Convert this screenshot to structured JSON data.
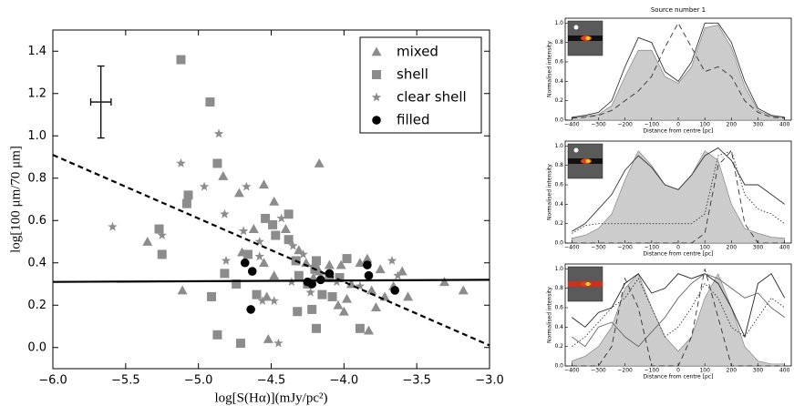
{
  "chart_data": [
    {
      "type": "scatter",
      "xlabel": "log[S(Hα)](mJy/pc²)",
      "ylabel": "log[100 μm/70 μm]",
      "xlim": [
        -6.0,
        -3.0
      ],
      "ylim": [
        -0.1,
        1.5
      ],
      "xticks": [
        {
          "value": -6.0,
          "label": "−6.0"
        },
        {
          "value": -5.5,
          "label": "−5.5"
        },
        {
          "value": -5.0,
          "label": "−5.0"
        },
        {
          "value": -4.5,
          "label": "−4.5"
        },
        {
          "value": -4.0,
          "label": "−4.0"
        },
        {
          "value": -3.5,
          "label": "−3.5"
        },
        {
          "value": -3.0,
          "label": "−3.0"
        }
      ],
      "yticks": [
        {
          "value": 0,
          "label": "0.0"
        },
        0.2,
        0.4,
        0.6,
        0.8,
        {
          "value": 1,
          "label": "1.0"
        },
        1.2,
        1.4
      ],
      "legend": "upper right",
      "series": [
        {
          "name": "mixed",
          "color": "#8c8c8c",
          "marker": "triangle",
          "x": [
            -4.17,
            -5.35,
            -5.11,
            -4.83,
            -4.72,
            -4.55,
            -4.48,
            -4.62,
            -4.4,
            -4.31,
            -4.7,
            -4.55,
            -4.48,
            -4.53,
            -4.52,
            -4.26,
            -4.21,
            -4.17,
            -4.1,
            -4.02,
            -3.95,
            -3.89,
            -3.84,
            -3.81,
            -3.75,
            -3.72,
            -3.66,
            -3.6,
            -3.56,
            -3.78,
            -4.0,
            -3.83,
            -3.31,
            -3.18,
            -3.98,
            -4.04
          ],
          "values": [
            0.87,
            0.5,
            0.27,
            0.81,
            0.73,
            0.77,
            0.69,
            0.56,
            0.56,
            0.46,
            0.45,
            0.4,
            0.34,
            0.24,
            0.04,
            0.4,
            0.33,
            0.36,
            0.39,
            0.39,
            0.3,
            0.4,
            0.42,
            0.27,
            0.37,
            0.24,
            0.29,
            0.36,
            0.24,
            0.19,
            0.17,
            0.08,
            0.31,
            0.27,
            0.23,
            0.2
          ]
        },
        {
          "name": "shell",
          "color": "#8c8c8c",
          "marker": "square",
          "x": [
            -5.12,
            -4.92,
            -4.87,
            -5.07,
            -5.08,
            -5.27,
            -5.25,
            -4.91,
            -4.87,
            -4.71,
            -4.66,
            -4.54,
            -4.49,
            -4.47,
            -4.38,
            -4.38,
            -4.33,
            -4.31,
            -4.25,
            -4.2,
            -4.19,
            -4.15,
            -4.1,
            -4.22,
            -4.32,
            -4.19,
            -4.08,
            -4.03,
            -3.98,
            -4.82,
            -4.6,
            -3.89,
            -4.74
          ],
          "values": [
            1.36,
            1.16,
            0.87,
            0.72,
            0.68,
            0.56,
            0.44,
            0.24,
            0.06,
            0.02,
            0.44,
            0.61,
            0.58,
            0.53,
            0.63,
            0.51,
            0.41,
            0.34,
            0.3,
            0.37,
            0.41,
            0.25,
            0.33,
            0.18,
            0.17,
            0.09,
            0.24,
            0.33,
            0.42,
            0.35,
            0.25,
            0.09,
            0.3
          ]
        },
        {
          "name": "clear shell",
          "color": "#8c8c8c",
          "marker": "star",
          "x": [
            -4.86,
            -5.12,
            -4.96,
            -5.25,
            -5.59,
            -4.67,
            -4.82,
            -4.69,
            -4.58,
            -4.43,
            -4.58,
            -4.35,
            -4.28,
            -4.2,
            -4.56,
            -4.48,
            -4.45,
            -4.81,
            -4.36,
            -4.05,
            -3.89,
            -3.67,
            -3.63,
            -4.23
          ],
          "values": [
            1.01,
            0.87,
            0.76,
            0.53,
            0.57,
            0.76,
            0.63,
            0.55,
            0.5,
            0.61,
            0.43,
            0.48,
            0.44,
            0.37,
            0.22,
            0.22,
            0.02,
            0.41,
            0.31,
            0.31,
            0.29,
            0.41,
            0.34,
            0.26
          ]
        },
        {
          "name": "filled",
          "color": "#000000",
          "marker": "circle",
          "x": [
            -4.68,
            -4.63,
            -4.64,
            -4.25,
            -4.22,
            -4.16,
            -4.1,
            -3.84,
            -3.83,
            -3.65
          ],
          "values": [
            0.4,
            0.36,
            0.18,
            0.31,
            0.3,
            0.32,
            0.35,
            0.39,
            0.34,
            0.27
          ]
        }
      ],
      "lines": [
        {
          "style": "dashed",
          "color": "#000000",
          "x": [
            -6.0,
            -3.0
          ],
          "values": [
            0.91,
            0.01
          ]
        },
        {
          "style": "solid",
          "color": "#000000",
          "x": [
            -6.0,
            -3.0
          ],
          "values": [
            0.31,
            0.32
          ]
        }
      ],
      "errorbar": {
        "x": -5.67,
        "y": 1.16,
        "xerr": 0.07,
        "yerr": 0.17
      }
    },
    {
      "type": "line",
      "title": "Source number 1",
      "xlabel": "Distance from centre [pc]",
      "ylabel": "Normalised intensity",
      "xlim": [
        -425,
        425
      ],
      "ylim": [
        0,
        1.05
      ],
      "xticks": [
        {
          "value": -400,
          "label": "−400"
        },
        {
          "value": -300,
          "label": "−300"
        },
        {
          "value": -200,
          "label": "−200"
        },
        {
          "value": -100,
          "label": "−100"
        },
        0,
        100,
        200,
        300,
        400
      ],
      "yticks": [
        {
          "value": 0,
          "label": "0.0"
        },
        0.2,
        0.4,
        0.6,
        0.8,
        {
          "value": 1,
          "label": "1.0"
        }
      ],
      "x": [
        -400,
        -350,
        -300,
        -250,
        -200,
        -150,
        -100,
        -50,
        0,
        50,
        100,
        150,
        200,
        250,
        300,
        350,
        400
      ],
      "series": [
        {
          "style": "fill",
          "color": "#cccccc",
          "values": [
            0.03,
            0.04,
            0.06,
            0.15,
            0.45,
            0.72,
            0.72,
            0.45,
            0.38,
            0.55,
            0.95,
            0.98,
            0.75,
            0.35,
            0.1,
            0.04,
            0.03
          ]
        },
        {
          "style": "solid",
          "color": "#333333",
          "values": [
            0.03,
            0.05,
            0.08,
            0.2,
            0.55,
            0.85,
            0.8,
            0.5,
            0.4,
            0.6,
            1.0,
            1.0,
            0.8,
            0.4,
            0.12,
            0.05,
            0.03
          ]
        },
        {
          "style": "dashed",
          "color": "#333333",
          "values": [
            0.02,
            0.03,
            0.05,
            0.1,
            0.2,
            0.3,
            0.45,
            0.75,
            1.0,
            0.75,
            0.5,
            0.55,
            0.45,
            0.2,
            0.08,
            0.03,
            0.02
          ]
        }
      ]
    },
    {
      "type": "line",
      "xlabel": "Distance from centre [pc]",
      "ylabel": "Normalised intensity",
      "xlim": [
        -425,
        425
      ],
      "ylim": [
        0,
        1.05
      ],
      "xticks": [
        {
          "value": -400,
          "label": "−400"
        },
        {
          "value": -300,
          "label": "−300"
        },
        {
          "value": -200,
          "label": "−200"
        },
        {
          "value": -100,
          "label": "−100"
        },
        0,
        100,
        200,
        300,
        400
      ],
      "yticks": [
        {
          "value": 0,
          "label": "0.0"
        },
        0.2,
        0.4,
        0.6,
        0.8,
        {
          "value": 1,
          "label": "1.0"
        }
      ],
      "x": [
        -400,
        -350,
        -300,
        -250,
        -200,
        -150,
        -100,
        -50,
        0,
        50,
        100,
        150,
        200,
        250,
        300,
        350,
        400
      ],
      "series": [
        {
          "style": "fill",
          "color": "#cccccc",
          "values": [
            0.05,
            0.08,
            0.15,
            0.3,
            0.65,
            0.95,
            0.8,
            0.6,
            0.55,
            0.7,
            0.95,
            0.85,
            0.4,
            0.15,
            0.1,
            0.06,
            0.05
          ]
        },
        {
          "style": "solid",
          "color": "#333333",
          "values": [
            0.12,
            0.2,
            0.35,
            0.5,
            0.75,
            0.9,
            0.78,
            0.6,
            0.55,
            0.7,
            0.9,
            0.98,
            0.85,
            0.6,
            0.6,
            0.5,
            0.4
          ]
        },
        {
          "style": "dashed",
          "color": "#333333",
          "values": [
            0,
            0,
            0,
            0,
            0,
            0,
            0,
            0,
            0,
            0,
            0.1,
            0.8,
            0.95,
            0.2,
            0,
            0,
            0
          ]
        },
        {
          "style": "dotted",
          "color": "#333333",
          "values": [
            0.1,
            0.18,
            0.2,
            0.2,
            0.2,
            0.2,
            0.2,
            0.2,
            0.2,
            0.2,
            0.3,
            0.9,
            0.95,
            0.5,
            0.35,
            0.3,
            0.2
          ]
        }
      ]
    },
    {
      "type": "line",
      "xlabel": "Distance from centre [pc]",
      "ylabel": "Normalised intensity",
      "xlim": [
        -425,
        425
      ],
      "ylim": [
        0,
        1.05
      ],
      "xticks": [
        {
          "value": -400,
          "label": "−400"
        },
        {
          "value": -300,
          "label": "−300"
        },
        {
          "value": -200,
          "label": "−200"
        },
        {
          "value": -100,
          "label": "−100"
        },
        0,
        100,
        200,
        300,
        400
      ],
      "yticks": [
        {
          "value": 0,
          "label": "0.0"
        },
        0.2,
        0.4,
        0.6,
        0.8,
        {
          "value": 1,
          "label": "1.0"
        }
      ],
      "x": [
        -400,
        -350,
        -300,
        -250,
        -200,
        -150,
        -100,
        -50,
        0,
        50,
        100,
        150,
        200,
        250,
        300,
        350,
        400
      ],
      "series": [
        {
          "style": "fill",
          "color": "#cccccc",
          "values": [
            0.05,
            0.1,
            0.2,
            0.4,
            0.8,
            0.95,
            0.6,
            0.3,
            0.15,
            0.3,
            0.7,
            0.95,
            0.6,
            0.2,
            0.05,
            0.02,
            0.02
          ]
        },
        {
          "style": "solid",
          "color": "#222222",
          "values": [
            0.5,
            0.4,
            0.55,
            0.6,
            0.85,
            0.95,
            0.75,
            0.8,
            0.95,
            0.9,
            0.95,
            0.85,
            0.6,
            0.3,
            0.85,
            0.95,
            0.7
          ]
        },
        {
          "style": "solid",
          "color": "#666666",
          "values": [
            0.3,
            0.2,
            0.4,
            0.45,
            0.3,
            0.2,
            0.35,
            0.5,
            0.7,
            0.85,
            0.95,
            0.9,
            0.8,
            0.7,
            0.75,
            0.6,
            0.5
          ]
        },
        {
          "style": "dashed",
          "color": "#333333",
          "values": [
            0,
            0,
            0,
            0.2,
            0.9,
            0.6,
            0,
            0,
            0,
            0.3,
            1.0,
            0.5,
            0,
            0,
            0,
            0,
            0
          ]
        },
        {
          "style": "dotted",
          "color": "#333333",
          "values": [
            0.2,
            0.3,
            0.45,
            0.6,
            0.7,
            0.9,
            0.6,
            0.3,
            0.4,
            0.6,
            0.85,
            0.7,
            0.4,
            0.3,
            0.5,
            0.7,
            0.6
          ]
        }
      ]
    }
  ]
}
